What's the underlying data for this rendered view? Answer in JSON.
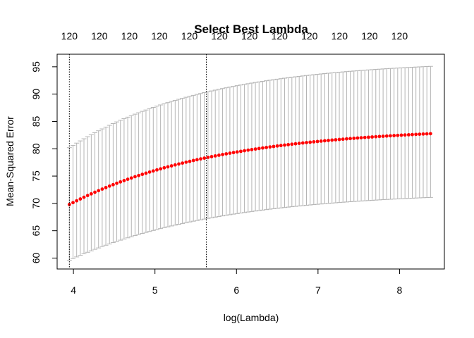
{
  "chart_data": {
    "type": "scatter",
    "title": "Select Best Lambda",
    "xlabel": "log(Lambda)",
    "ylabel": "Mean-Squared Error",
    "x_ticks": [
      "4",
      "5",
      "6",
      "7",
      "8"
    ],
    "y_ticks": [
      "60",
      "65",
      "70",
      "75",
      "80",
      "85",
      "90",
      "95"
    ],
    "top_axis_labels": [
      "120",
      "120",
      "120",
      "120",
      "120",
      "120",
      "120",
      "120",
      "120",
      "120",
      "120",
      "120"
    ],
    "xlim": [
      3.8,
      8.55
    ],
    "ylim": [
      58.0,
      97.3
    ],
    "x_range": [
      3.95,
      8.38
    ],
    "n_points": 100,
    "series": [
      {
        "type": "points",
        "start": 69.8,
        "plateau": 84.0,
        "rate": 0.55,
        "color": "#ff0000"
      },
      {
        "type": "error_bars",
        "upper_start": 80.2,
        "upper_plateau": 96.2,
        "upper_rate": 0.6,
        "lower_start": 59.6,
        "lower_plateau": 72.2,
        "lower_rate": 0.55,
        "color": "#b4b4b4"
      }
    ],
    "reference_lines": [
      {
        "x": 3.95,
        "style": "dotted"
      },
      {
        "x": 5.63,
        "style": "dotted"
      }
    ],
    "grid": false,
    "legend": "none"
  }
}
